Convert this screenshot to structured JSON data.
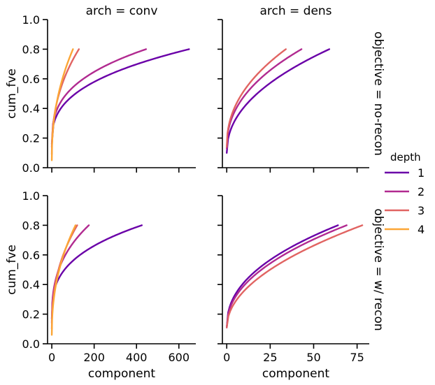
{
  "chart_data": {
    "type": "line",
    "hue_title": "depth",
    "x_label": "component",
    "y_label": "cum_fve",
    "legend_placement": "right",
    "grid": false,
    "columns": [
      "arch = conv",
      "arch = dens"
    ],
    "rows": [
      "objective = no-recon",
      "objective = w/ recon"
    ],
    "legend": [
      {
        "name": "1",
        "color": "#6a00a8"
      },
      {
        "name": "2",
        "color": "#b12a90"
      },
      {
        "name": "3",
        "color": "#e16462"
      },
      {
        "name": "4",
        "color": "#fca636"
      }
    ],
    "y_ticks": [
      "0.0",
      "0.2",
      "0.4",
      "0.6",
      "0.8",
      "1.0"
    ],
    "ylim": [
      0,
      1
    ],
    "col_axes": [
      {
        "xlim": [
          -20,
          680
        ],
        "ticks": [
          0,
          200,
          400,
          600
        ],
        "tick_labels": [
          "0",
          "200",
          "400",
          "600"
        ]
      },
      {
        "xlim": [
          -2.5,
          82
        ],
        "ticks": [
          0,
          25,
          50,
          75
        ],
        "tick_labels": [
          "0",
          "25",
          "50",
          "75"
        ]
      }
    ],
    "facets": [
      {
        "row": 0,
        "col": 0,
        "series": [
          {
            "depth": "1",
            "x0": 0,
            "x1": 648,
            "y0": 0.16,
            "y1": 0.8,
            "p": 0.36
          },
          {
            "depth": "2",
            "x0": 0,
            "x1": 445,
            "y0": 0.14,
            "y1": 0.8,
            "p": 0.33
          },
          {
            "depth": "3",
            "x0": 0,
            "x1": 128,
            "y0": 0.09,
            "y1": 0.8,
            "p": 0.42
          },
          {
            "depth": "4",
            "x0": 0,
            "x1": 100,
            "y0": 0.05,
            "y1": 0.8,
            "p": 0.45
          }
        ]
      },
      {
        "row": 0,
        "col": 1,
        "series": [
          {
            "depth": "1",
            "x0": 0,
            "x1": 59,
            "y0": 0.1,
            "y1": 0.8,
            "p": 0.46
          },
          {
            "depth": "2",
            "x0": 0,
            "x1": 43,
            "y0": 0.13,
            "y1": 0.8,
            "p": 0.44
          },
          {
            "depth": "3",
            "x0": 0,
            "x1": 34,
            "y0": 0.14,
            "y1": 0.8,
            "p": 0.45
          }
        ]
      },
      {
        "row": 1,
        "col": 0,
        "series": [
          {
            "depth": "1",
            "x0": 0,
            "x1": 425,
            "y0": 0.17,
            "y1": 0.8,
            "p": 0.33
          },
          {
            "depth": "2",
            "x0": 0,
            "x1": 175,
            "y0": 0.14,
            "y1": 0.8,
            "p": 0.36
          },
          {
            "depth": "3",
            "x0": 0,
            "x1": 120,
            "y0": 0.1,
            "y1": 0.8,
            "p": 0.42
          },
          {
            "depth": "4",
            "x0": 0,
            "x1": 112,
            "y0": 0.06,
            "y1": 0.8,
            "p": 0.45
          }
        ]
      },
      {
        "row": 1,
        "col": 1,
        "series": [
          {
            "depth": "1",
            "x0": 0,
            "x1": 64,
            "y0": 0.11,
            "y1": 0.8,
            "p": 0.44
          },
          {
            "depth": "2",
            "x0": 0,
            "x1": 69,
            "y0": 0.11,
            "y1": 0.8,
            "p": 0.46
          },
          {
            "depth": "3",
            "x0": 0,
            "x1": 78,
            "y0": 0.11,
            "y1": 0.8,
            "p": 0.5
          }
        ]
      }
    ]
  }
}
